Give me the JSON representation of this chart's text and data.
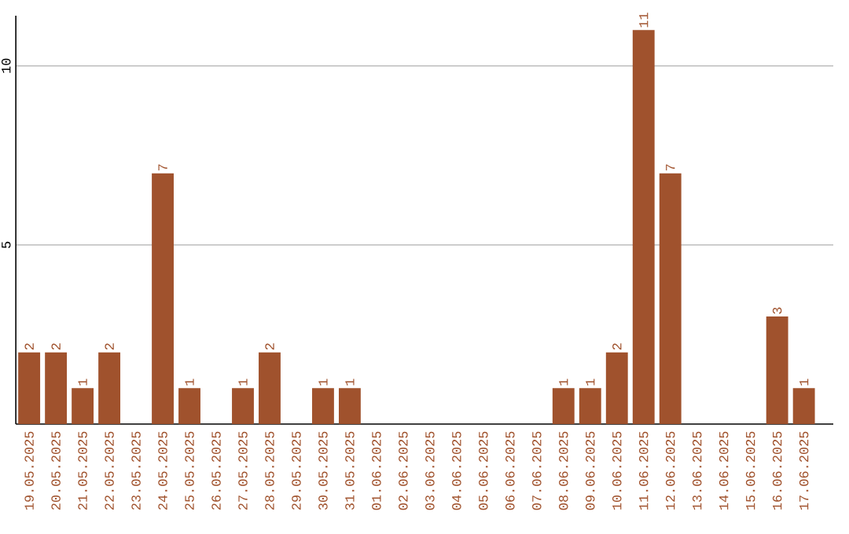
{
  "chart_data": {
    "type": "bar",
    "categories": [
      "19.05.2025",
      "20.05.2025",
      "21.05.2025",
      "22.05.2025",
      "23.05.2025",
      "24.05.2025",
      "25.05.2025",
      "26.05.2025",
      "27.05.2025",
      "28.05.2025",
      "29.05.2025",
      "30.05.2025",
      "31.05.2025",
      "01.06.2025",
      "02.06.2025",
      "03.06.2025",
      "04.06.2025",
      "05.06.2025",
      "06.06.2025",
      "07.06.2025",
      "08.06.2025",
      "09.06.2025",
      "10.06.2025",
      "11.06.2025",
      "12.06.2025",
      "13.06.2025",
      "14.06.2025",
      "15.06.2025",
      "16.06.2025",
      "17.06.2025"
    ],
    "values": [
      2,
      2,
      1,
      2,
      0,
      7,
      1,
      0,
      1,
      2,
      0,
      1,
      1,
      0,
      0,
      0,
      0,
      0,
      0,
      0,
      1,
      1,
      2,
      11,
      7,
      0,
      0,
      0,
      3,
      1
    ],
    "value_labels": [
      "2",
      "2",
      "1",
      "2",
      null,
      "7",
      "1",
      null,
      "1",
      "2",
      null,
      "1",
      "1",
      null,
      null,
      null,
      null,
      null,
      null,
      null,
      "1",
      "1",
      "2",
      "11",
      "7",
      null,
      null,
      null,
      "3",
      "1"
    ],
    "color": "#a0522d",
    "ylim": [
      0,
      11.4
    ],
    "yticks": [
      5,
      10
    ],
    "grid": "y"
  }
}
